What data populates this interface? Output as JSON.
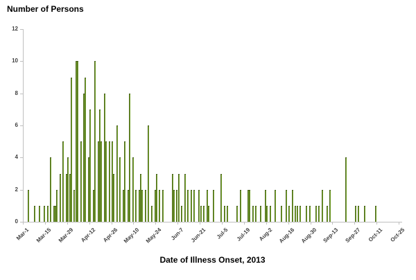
{
  "chart_data": {
    "type": "bar",
    "title": "Number of Persons",
    "xlabel": "Date of Illness Onset, 2013",
    "ylabel": "Number of Persons",
    "ylim": [
      0,
      12
    ],
    "yticks": [
      0,
      2,
      4,
      6,
      8,
      10,
      12
    ],
    "grid": false,
    "legend": false,
    "bin_days": 1,
    "x_day0_label": "Mar-1",
    "tick_every_days": 14,
    "days_total": 240,
    "xtick_labels": [
      "Mar-1",
      "Mar-15",
      "Mar-29",
      "Apr-12",
      "Apr-26",
      "May-10",
      "May-24",
      "Jun-7",
      "Jun-21",
      "Jul-5",
      "Jul-19",
      "Aug-2",
      "Aug-16",
      "Aug-30",
      "Sep-13",
      "Sep-27",
      "Oct-11",
      "Oct-25"
    ],
    "bar_color": "#76a22e",
    "bar_border_color": "#4e691d",
    "axis_color": "#bfbfbf",
    "label_color": "#404040",
    "cases_day_value_pairs": [
      [
        3,
        2
      ],
      [
        7,
        1
      ],
      [
        10,
        1
      ],
      [
        13,
        1
      ],
      [
        15,
        1
      ],
      [
        17,
        4
      ],
      [
        19,
        1
      ],
      [
        20,
        1
      ],
      [
        21,
        2
      ],
      [
        23,
        3
      ],
      [
        25,
        5
      ],
      [
        27,
        3
      ],
      [
        28,
        4
      ],
      [
        29,
        3
      ],
      [
        30,
        9
      ],
      [
        32,
        2
      ],
      [
        33,
        10
      ],
      [
        34,
        10
      ],
      [
        36,
        5
      ],
      [
        38,
        8
      ],
      [
        39,
        9
      ],
      [
        41,
        4
      ],
      [
        42,
        7
      ],
      [
        44,
        2
      ],
      [
        45,
        10
      ],
      [
        47,
        5
      ],
      [
        48,
        7
      ],
      [
        49,
        5
      ],
      [
        51,
        8
      ],
      [
        52,
        5
      ],
      [
        54,
        5
      ],
      [
        56,
        5
      ],
      [
        57,
        3
      ],
      [
        59,
        6
      ],
      [
        61,
        4
      ],
      [
        63,
        2
      ],
      [
        64,
        5
      ],
      [
        66,
        2
      ],
      [
        67,
        8
      ],
      [
        69,
        4
      ],
      [
        71,
        2
      ],
      [
        73,
        2
      ],
      [
        74,
        3
      ],
      [
        75,
        2
      ],
      [
        77,
        2
      ],
      [
        79,
        6
      ],
      [
        81,
        1
      ],
      [
        83,
        2
      ],
      [
        84,
        3
      ],
      [
        86,
        2
      ],
      [
        88,
        2
      ],
      [
        94,
        3
      ],
      [
        95,
        2
      ],
      [
        97,
        2
      ],
      [
        98,
        3
      ],
      [
        100,
        1
      ],
      [
        102,
        3
      ],
      [
        104,
        2
      ],
      [
        106,
        2
      ],
      [
        108,
        2
      ],
      [
        111,
        2
      ],
      [
        112,
        1
      ],
      [
        114,
        1
      ],
      [
        116,
        2
      ],
      [
        117,
        1
      ],
      [
        120,
        2
      ],
      [
        125,
        3
      ],
      [
        127,
        1
      ],
      [
        129,
        1
      ],
      [
        135,
        1
      ],
      [
        137,
        2
      ],
      [
        142,
        2
      ],
      [
        143,
        2
      ],
      [
        145,
        1
      ],
      [
        147,
        1
      ],
      [
        150,
        1
      ],
      [
        153,
        2
      ],
      [
        154,
        1
      ],
      [
        156,
        1
      ],
      [
        159,
        2
      ],
      [
        163,
        1
      ],
      [
        166,
        2
      ],
      [
        168,
        1
      ],
      [
        170,
        2
      ],
      [
        172,
        1
      ],
      [
        173,
        1
      ],
      [
        175,
        1
      ],
      [
        179,
        1
      ],
      [
        181,
        1
      ],
      [
        185,
        1
      ],
      [
        187,
        1
      ],
      [
        189,
        2
      ],
      [
        192,
        1
      ],
      [
        194,
        2
      ],
      [
        204,
        4
      ],
      [
        210,
        1
      ],
      [
        212,
        1
      ],
      [
        216,
        1
      ],
      [
        223,
        1
      ]
    ]
  }
}
